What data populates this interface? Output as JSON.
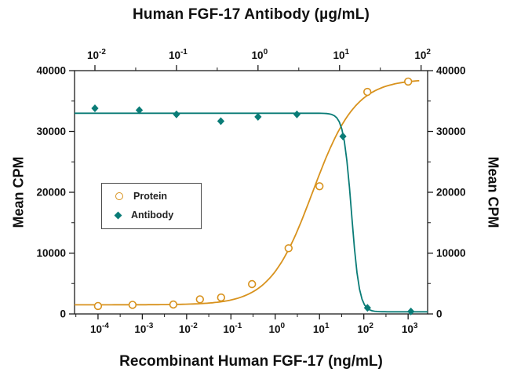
{
  "figure": {
    "title_top": "Human FGF-17 Antibody (µg/mL)",
    "xlabel_bottom": "Recombinant Human FGF-17 (ng/mL)",
    "ylabel_left": "Mean CPM",
    "ylabel_right": "Mean CPM"
  },
  "legend": {
    "items": [
      {
        "label": "Protein",
        "marker": "circle-open",
        "color": "#D8921D"
      },
      {
        "label": "Antibody",
        "marker": "diamond-filled",
        "color": "#0A7C77"
      }
    ]
  },
  "chart_data": {
    "type": "scatter",
    "title": "Human FGF-17 Antibody (µg/mL)",
    "axes": {
      "y": {
        "label": "Mean CPM",
        "min": 0,
        "max": 40000,
        "ticks": [
          0,
          10000,
          20000,
          30000,
          40000
        ],
        "minor_step": 5000
      },
      "x_bottom": {
        "label": "Recombinant Human FGF-17 (ng/mL)",
        "scale": "log",
        "min_exp": -4.53,
        "max_exp": 3.44,
        "tick_exps": [
          -4,
          -3,
          -2,
          -1,
          0,
          1,
          2,
          3
        ]
      },
      "x_top": {
        "label": "Human FGF-17 Antibody (µg/mL)",
        "scale": "log",
        "min_exp": -2.25,
        "max_exp": 2.08,
        "tick_exps": [
          -2,
          -1,
          0,
          1,
          2
        ]
      }
    },
    "series": [
      {
        "name": "Protein",
        "x_axis": "bottom",
        "marker": "circle-open",
        "color": "#D8921D",
        "points_x": [
          0.0001,
          0.0006,
          0.005,
          0.02,
          0.06,
          0.3,
          2,
          10,
          120,
          1000
        ],
        "points_y": [
          1300,
          1500,
          1550,
          2400,
          2700,
          4900,
          10800,
          21000,
          36500,
          38200
        ],
        "fit": {
          "model": "4PL",
          "low": 1500,
          "high": 38600,
          "ec50": 7,
          "hill": 0.9,
          "direction": "increasing",
          "draw_exp_range": [
            -4.53,
            3.25
          ]
        }
      },
      {
        "name": "Antibody",
        "x_axis": "top",
        "marker": "diamond-filled",
        "color": "#0A7C77",
        "points_x": [
          0.01,
          0.035,
          0.1,
          0.35,
          1,
          3,
          11,
          22,
          75
        ],
        "points_y": [
          33800,
          33500,
          32800,
          31700,
          32400,
          32800,
          29200,
          1000,
          400
        ],
        "fit": {
          "model": "4PL",
          "low": 350,
          "high": 33000,
          "ec50": 14,
          "hill": 9,
          "direction": "decreasing",
          "draw_exp_range": [
            -2.25,
            2.08
          ]
        }
      }
    ],
    "legend_position": "middle-left"
  }
}
